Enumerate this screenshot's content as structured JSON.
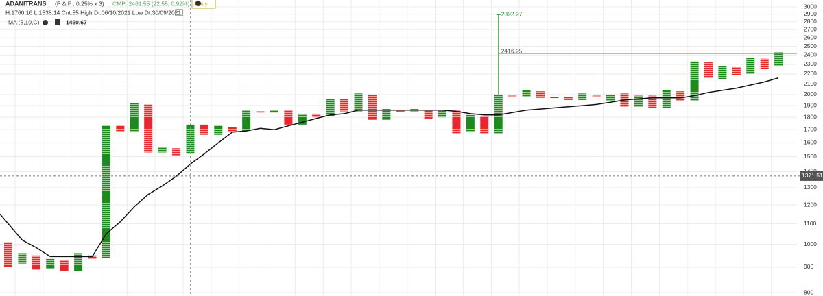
{
  "header": {
    "symbol": "ADANITRANS",
    "pf": "(P & F : 0.25% x 3)",
    "cmp": "CMP: 2461.55 (22.55, 0.92%)",
    "interval": "Daily",
    "stats": "H:1760.16 L:1538.14 Cnt:55 High Dt:06/10/2021 Low Dt:30/09/2021",
    "ma_label": "MA (5,10,C)",
    "ma_last": "1460.67"
  },
  "chart_data": {
    "type": "point-and-figure",
    "log_scale": true,
    "grid": true,
    "up_color": "#1e8a1e",
    "down_color": "#e8262b",
    "ma_color": "#111111",
    "first_column_down": true,
    "highs": [
      1010,
      960,
      950,
      935,
      930,
      960,
      950,
      1730,
      1730,
      1920,
      1910,
      1570,
      1560,
      1740,
      1740,
      1730,
      1720,
      1860,
      1850,
      1860,
      1860,
      1830,
      1830,
      1960,
      1960,
      2010,
      2000,
      1870,
      1860,
      1870,
      1860,
      1860,
      1860,
      1820,
      1810,
      2000,
      1990,
      2040,
      2030,
      1980,
      1980,
      2010,
      1990,
      2000,
      2010,
      1990,
      1990,
      2040,
      2030,
      2330,
      2320,
      2280,
      2270,
      2370,
      2360,
      2430
    ],
    "lows": [
      900,
      915,
      890,
      895,
      885,
      885,
      935,
      940,
      1680,
      1680,
      1530,
      1530,
      1510,
      1520,
      1660,
      1660,
      1680,
      1690,
      1840,
      1840,
      1740,
      1740,
      1800,
      1810,
      1850,
      1850,
      1780,
      1780,
      1850,
      1850,
      1790,
      1800,
      1670,
      1680,
      1670,
      1670,
      1980,
      1980,
      1970,
      1970,
      1950,
      1950,
      1980,
      1940,
      1890,
      1890,
      1880,
      1880,
      1940,
      1940,
      2160,
      2150,
      2190,
      2200,
      2250,
      2280
    ],
    "ma_values": [
      1150,
      1020,
      985,
      945,
      945,
      945,
      945,
      1050,
      1110,
      1190,
      1260,
      1310,
      1370,
      1450,
      1520,
      1600,
      1680,
      1690,
      1710,
      1700,
      1730,
      1760,
      1790,
      1820,
      1830,
      1860,
      1860,
      1860,
      1860,
      1860,
      1860,
      1860,
      1850,
      1830,
      1820,
      1820,
      1840,
      1860,
      1870,
      1880,
      1890,
      1900,
      1910,
      1930,
      1950,
      1960,
      1970,
      1970,
      1970,
      1990,
      2020,
      2040,
      2060,
      2090,
      2120,
      2160
    ],
    "ylim": [
      800,
      3000
    ],
    "yticks": [
      800,
      900,
      1000,
      1100,
      1200,
      1300,
      1400,
      1500,
      1600,
      1700,
      1800,
      1900,
      2000,
      2100,
      2200,
      2300,
      2400,
      2500,
      2600,
      2700,
      2800,
      2900,
      3000
    ],
    "annotations": [
      {
        "value": 2892.97,
        "label": "2892.97"
      },
      {
        "value": 2416.95,
        "label": "2416.95"
      }
    ],
    "cursor": {
      "value": 1371.51,
      "label": "1371.51"
    }
  }
}
